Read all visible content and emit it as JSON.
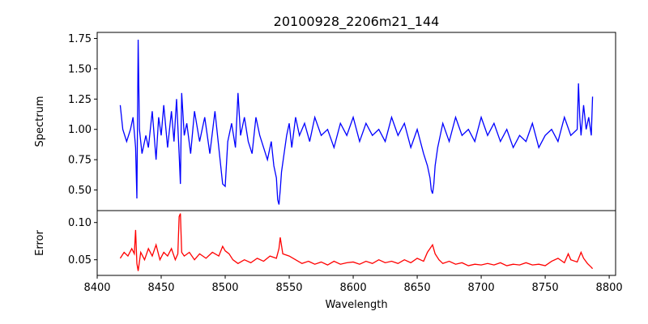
{
  "chart_data": [
    {
      "type": "line",
      "title": "20100928_2206m21_144",
      "ylabel": "Spectrum",
      "xlabel": "",
      "xlim": [
        8400,
        8805
      ],
      "ylim": [
        0.33,
        1.8
      ],
      "yticks": [
        0.5,
        0.75,
        1.0,
        1.25,
        1.5,
        1.75
      ],
      "ytick_labels": [
        "0.50",
        "0.75",
        "1.00",
        "1.25",
        "1.50",
        "1.75"
      ],
      "series": [
        {
          "color": "#0000ff",
          "x": [
            8418,
            8420,
            8423,
            8426,
            8428,
            8430,
            8431,
            8432,
            8433,
            8435,
            8438,
            8440,
            8443,
            8446,
            8448,
            8450,
            8452,
            8455,
            8458,
            8460,
            8462,
            8464,
            8465,
            8466,
            8468,
            8470,
            8473,
            8476,
            8480,
            8484,
            8488,
            8492,
            8496,
            8498,
            8500,
            8502,
            8505,
            8508,
            8510,
            8512,
            8515,
            8518,
            8521,
            8524,
            8527,
            8530,
            8533,
            8536,
            8538,
            8540,
            8541,
            8542,
            8543,
            8544,
            8546,
            8548,
            8550,
            8552,
            8555,
            8558,
            8562,
            8566,
            8570,
            8575,
            8580,
            8585,
            8590,
            8595,
            8600,
            8605,
            8610,
            8615,
            8620,
            8625,
            8630,
            8635,
            8640,
            8645,
            8650,
            8655,
            8658,
            8660,
            8661,
            8662,
            8663,
            8664,
            8666,
            8668,
            8670,
            8675,
            8680,
            8685,
            8690,
            8695,
            8700,
            8705,
            8710,
            8715,
            8720,
            8725,
            8730,
            8735,
            8740,
            8745,
            8750,
            8755,
            8760,
            8765,
            8770,
            8775,
            8776,
            8777,
            8778,
            8780,
            8782,
            8784,
            8786,
            8787
          ],
          "y": [
            1.2,
            1.0,
            0.9,
            1.0,
            1.1,
            0.85,
            0.43,
            1.74,
            1.0,
            0.8,
            0.95,
            0.85,
            1.15,
            0.75,
            1.1,
            0.95,
            1.2,
            0.85,
            1.15,
            0.9,
            1.25,
            0.8,
            0.55,
            1.3,
            0.95,
            1.05,
            0.8,
            1.15,
            0.9,
            1.1,
            0.8,
            1.15,
            0.75,
            0.55,
            0.53,
            0.9,
            1.05,
            0.85,
            1.3,
            0.95,
            1.1,
            0.9,
            0.8,
            1.1,
            0.95,
            0.85,
            0.75,
            0.9,
            0.7,
            0.6,
            0.42,
            0.38,
            0.5,
            0.65,
            0.8,
            0.95,
            1.05,
            0.85,
            1.1,
            0.95,
            1.05,
            0.9,
            1.1,
            0.95,
            1.0,
            0.85,
            1.05,
            0.95,
            1.1,
            0.9,
            1.05,
            0.95,
            1.0,
            0.9,
            1.1,
            0.95,
            1.05,
            0.85,
            1.0,
            0.8,
            0.7,
            0.6,
            0.5,
            0.47,
            0.55,
            0.7,
            0.85,
            0.95,
            1.05,
            0.9,
            1.1,
            0.95,
            1.0,
            0.9,
            1.1,
            0.95,
            1.05,
            0.9,
            1.0,
            0.85,
            0.95,
            0.9,
            1.05,
            0.85,
            0.95,
            1.0,
            0.9,
            1.1,
            0.95,
            1.0,
            1.38,
            1.1,
            0.95,
            1.2,
            1.0,
            1.1,
            0.95,
            1.27
          ]
        }
      ]
    },
    {
      "type": "line",
      "title": "",
      "ylabel": "Error",
      "xlabel": "Wavelength",
      "xlim": [
        8400,
        8805
      ],
      "ylim": [
        0.029,
        0.116
      ],
      "yticks": [
        0.05,
        0.1
      ],
      "ytick_labels": [
        "0.05",
        "0.10"
      ],
      "xticks": [
        8400,
        8450,
        8500,
        8550,
        8600,
        8650,
        8700,
        8750,
        8800
      ],
      "xtick_labels": [
        "8400",
        "8450",
        "8500",
        "8550",
        "8600",
        "8650",
        "8700",
        "8750",
        "8800"
      ],
      "series": [
        {
          "color": "#ff0000",
          "x": [
            8418,
            8421,
            8424,
            8427,
            8429,
            8430,
            8431,
            8432,
            8434,
            8437,
            8440,
            8443,
            8446,
            8449,
            8452,
            8455,
            8458,
            8461,
            8463,
            8464,
            8465,
            8466,
            8468,
            8472,
            8476,
            8480,
            8485,
            8490,
            8495,
            8498,
            8500,
            8503,
            8506,
            8510,
            8515,
            8520,
            8525,
            8530,
            8535,
            8540,
            8542,
            8543,
            8545,
            8550,
            8555,
            8560,
            8565,
            8570,
            8575,
            8580,
            8585,
            8590,
            8595,
            8600,
            8605,
            8610,
            8615,
            8620,
            8625,
            8630,
            8635,
            8640,
            8645,
            8650,
            8655,
            8658,
            8660,
            8662,
            8664,
            8667,
            8670,
            8675,
            8680,
            8685,
            8690,
            8695,
            8700,
            8705,
            8710,
            8715,
            8720,
            8725,
            8730,
            8735,
            8740,
            8745,
            8750,
            8755,
            8760,
            8765,
            8768,
            8770,
            8775,
            8778,
            8780,
            8783,
            8786,
            8787
          ],
          "y": [
            0.052,
            0.06,
            0.055,
            0.065,
            0.058,
            0.09,
            0.045,
            0.035,
            0.06,
            0.05,
            0.065,
            0.055,
            0.07,
            0.05,
            0.06,
            0.055,
            0.065,
            0.05,
            0.058,
            0.108,
            0.112,
            0.06,
            0.055,
            0.06,
            0.05,
            0.058,
            0.052,
            0.06,
            0.055,
            0.068,
            0.062,
            0.058,
            0.05,
            0.045,
            0.05,
            0.046,
            0.052,
            0.048,
            0.055,
            0.052,
            0.065,
            0.08,
            0.058,
            0.055,
            0.05,
            0.045,
            0.048,
            0.044,
            0.047,
            0.043,
            0.048,
            0.044,
            0.046,
            0.047,
            0.044,
            0.048,
            0.045,
            0.05,
            0.046,
            0.048,
            0.045,
            0.05,
            0.046,
            0.052,
            0.048,
            0.06,
            0.065,
            0.07,
            0.058,
            0.05,
            0.045,
            0.048,
            0.044,
            0.046,
            0.042,
            0.044,
            0.043,
            0.045,
            0.043,
            0.046,
            0.042,
            0.044,
            0.043,
            0.046,
            0.043,
            0.044,
            0.042,
            0.048,
            0.052,
            0.046,
            0.058,
            0.05,
            0.047,
            0.06,
            0.052,
            0.045,
            0.04,
            0.038
          ]
        }
      ]
    }
  ]
}
